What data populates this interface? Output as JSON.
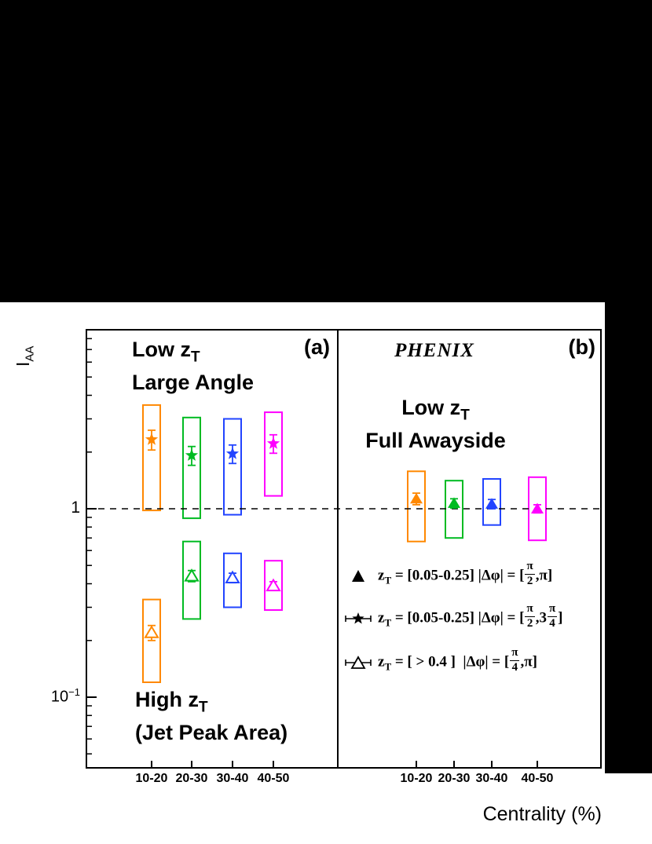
{
  "figure": {
    "page_background": "#000000",
    "canvas_background": "#ffffff"
  },
  "axis": {
    "y_title_main": "I",
    "y_title_sub": "AA",
    "y_tick_1": "1",
    "y_tick_01_base": "10",
    "y_tick_01_exp": "−1",
    "x_title": "Centrality (%)",
    "x_tick_labels": [
      "10-20",
      "20-30",
      "30-40",
      "40-50"
    ]
  },
  "panel_a": {
    "tag": "(a)",
    "top_annotation": {
      "line1_main": "Low z",
      "line1_sub": "T",
      "line2": "Large Angle"
    },
    "bottom_annotation": {
      "line1_main": "High z",
      "line1_sub": "T",
      "line2": "(Jet Peak Area)"
    }
  },
  "panel_b": {
    "tag": "(b)",
    "experiment": "PHENIX",
    "annotation": {
      "line1_main": "Low z",
      "line1_sub": "T",
      "line2": "Full Awayside"
    }
  },
  "legend": {
    "items": [
      {
        "marker": "filled-triangle",
        "z": "z",
        "z_sub": "T",
        "body": " = [0.05-0.25] |Δφ| = [",
        "f1_num": "π",
        "f1_den": "2",
        "tail": ",π]"
      },
      {
        "marker": "star-with-error-bars",
        "z": "z",
        "z_sub": "T",
        "body": " = [0.05-0.25] |Δφ| = [",
        "f1_num": "π",
        "f1_den": "2",
        "mid": ",3",
        "f2_num": "π",
        "f2_den": "4",
        "tail": "]"
      },
      {
        "marker": "open-triangle-with-error-bars",
        "z": "z",
        "z_sub": "T",
        "body": " = [ > 0.4 ]  |Δφ| = [",
        "f1_num": "π",
        "f1_den": "4",
        "tail": ",π]"
      }
    ]
  },
  "chart_data": {
    "type": "scatter",
    "y_scale": "log",
    "ylabel": "I_AA",
    "xlabel": "Centrality (%)",
    "ylim": [
      0.042,
      8.9
    ],
    "reference_line": 1.0,
    "grid": false,
    "categories": [
      "10-20",
      "20-30",
      "30-40",
      "40-50"
    ],
    "colors": [
      "#ff8800",
      "#00bb22",
      "#2244ff",
      "#ff00ff"
    ],
    "panels": [
      {
        "id": "a",
        "label": "(a)",
        "series": [
          {
            "name": "Low zT Large Angle",
            "marker": "star",
            "values": [
              2.33,
              1.92,
              1.96,
              2.22
            ],
            "stat_err": [
              0.28,
              0.22,
              0.22,
              0.25
            ],
            "sys_lo": [
              0.98,
              0.89,
              0.93,
              1.17
            ],
            "sys_hi": [
              3.55,
              3.05,
              3.0,
              3.25
            ]
          },
          {
            "name": "High zT Jet Peak Area",
            "marker": "open-triangle",
            "values": [
              0.22,
              0.44,
              0.43,
              0.39
            ],
            "stat_err": [
              0.02,
              0.03,
              0.025,
              0.02
            ],
            "sys_lo": [
              0.12,
              0.26,
              0.3,
              0.29
            ],
            "sys_hi": [
              0.33,
              0.67,
              0.58,
              0.53
            ]
          }
        ]
      },
      {
        "id": "b",
        "label": "(b)",
        "series": [
          {
            "name": "Low zT Full Awayside",
            "marker": "filled-triangle",
            "values": [
              1.13,
              1.07,
              1.06,
              1.0
            ],
            "stat_err": [
              0.08,
              0.06,
              0.06,
              0.05
            ],
            "sys_lo": [
              0.67,
              0.7,
              0.82,
              0.68
            ],
            "sys_hi": [
              1.58,
              1.41,
              1.44,
              1.47
            ]
          }
        ]
      }
    ]
  }
}
